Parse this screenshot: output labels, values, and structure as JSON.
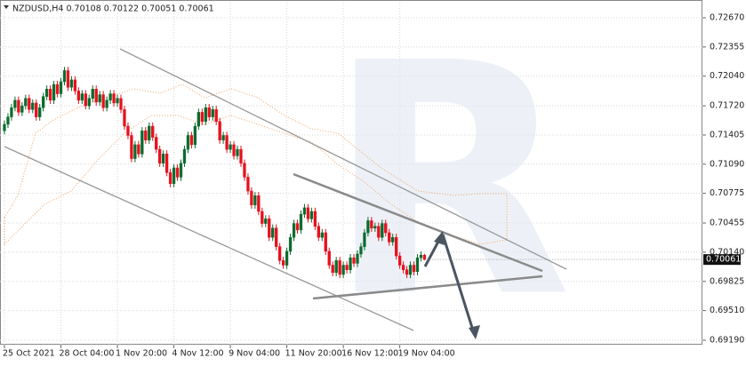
{
  "chart_data": {
    "type": "candlestick",
    "title": "NZDUSD,H4  0.70108 0.70122 0.70051 0.70061",
    "categories": [
      "25 Oct 2021",
      null,
      null,
      null,
      null,
      null,
      null,
      null,
      null,
      null,
      null,
      null,
      null,
      null,
      null,
      null,
      "28 Oct 04:00",
      null,
      null,
      null,
      null,
      null,
      null,
      null,
      null,
      null,
      null,
      null,
      null,
      null,
      null,
      null,
      "1 Nov 20:00",
      null,
      null,
      null,
      null,
      null,
      null,
      null,
      null,
      null,
      null,
      null,
      null,
      null,
      null,
      null,
      "4 Nov 12:00",
      null,
      null,
      null,
      null,
      null,
      null,
      null,
      null,
      null,
      null,
      null,
      null,
      null,
      null,
      null,
      "9 Nov 04:00",
      null,
      null,
      null,
      null,
      null,
      null,
      null,
      null,
      null,
      null,
      null,
      null,
      null,
      null,
      null,
      "11 Nov 20:00",
      null,
      null,
      null,
      null,
      null,
      null,
      null,
      null,
      null,
      null,
      null,
      null,
      null,
      null,
      null,
      "16 Nov 12:00",
      null,
      null,
      null,
      null,
      null,
      null,
      null,
      null,
      null,
      null,
      null,
      null,
      null,
      null,
      null,
      "19 Nov 04:00",
      null,
      null,
      null,
      null,
      null,
      null,
      null
    ],
    "open": [
      0.7145,
      0.7152,
      0.716,
      0.717,
      0.7178,
      0.7165,
      0.7172,
      0.718,
      0.7168,
      0.7175,
      0.716,
      0.717,
      0.7182,
      0.719,
      0.7178,
      0.7195,
      0.7185,
      0.7198,
      0.721,
      0.7192,
      0.72,
      0.7188,
      0.7178,
      0.7185,
      0.7172,
      0.718,
      0.719,
      0.7176,
      0.7184,
      0.717,
      0.7178,
      0.7185,
      0.7175,
      0.718,
      0.7168,
      0.715,
      0.714,
      0.7115,
      0.713,
      0.712,
      0.7145,
      0.7135,
      0.715,
      0.7138,
      0.7125,
      0.711,
      0.712,
      0.71,
      0.7088,
      0.7105,
      0.7095,
      0.711,
      0.7125,
      0.714,
      0.713,
      0.715,
      0.7165,
      0.7155,
      0.717,
      0.716,
      0.7168,
      0.7155,
      0.7135,
      0.714,
      0.7125,
      0.713,
      0.7118,
      0.7125,
      0.711,
      0.7095,
      0.708,
      0.7065,
      0.7075,
      0.7058,
      0.7045,
      0.705,
      0.703,
      0.704,
      0.702,
      0.7005,
      0.7,
      0.7015,
      0.703,
      0.7045,
      0.7038,
      0.7055,
      0.7062,
      0.705,
      0.7058,
      0.7042,
      0.703,
      0.7035,
      0.7015,
      0.7,
      0.6992,
      0.7005,
      0.699,
      0.7,
      0.6995,
      0.7008,
      0.7002,
      0.7012,
      0.702,
      0.7035,
      0.7048,
      0.704,
      0.7042,
      0.703,
      0.7045,
      0.7035,
      0.7025,
      0.703,
      0.701,
      0.7,
      0.6995,
      0.699,
      0.7,
      0.6993,
      0.7008,
      0.70108
    ],
    "high": [
      0.7156,
      0.7164,
      0.7174,
      0.7182,
      0.7182,
      0.7176,
      0.7184,
      0.7184,
      0.7179,
      0.7179,
      0.7174,
      0.7186,
      0.7194,
      0.7194,
      0.7199,
      0.7199,
      0.7202,
      0.7214,
      0.7214,
      0.7204,
      0.7204,
      0.7192,
      0.7189,
      0.7189,
      0.7184,
      0.7194,
      0.7194,
      0.7188,
      0.7188,
      0.7182,
      0.7189,
      0.7189,
      0.7184,
      0.7184,
      0.7172,
      0.7154,
      0.7144,
      0.7134,
      0.7134,
      0.7149,
      0.7149,
      0.7154,
      0.7154,
      0.7142,
      0.7129,
      0.7124,
      0.7124,
      0.7104,
      0.7109,
      0.7109,
      0.7114,
      0.7129,
      0.7144,
      0.7144,
      0.7154,
      0.7169,
      0.7169,
      0.7174,
      0.7174,
      0.7172,
      0.7172,
      0.7159,
      0.7144,
      0.7144,
      0.7134,
      0.7134,
      0.7129,
      0.7129,
      0.7114,
      0.7099,
      0.7084,
      0.7079,
      0.7079,
      0.7062,
      0.7054,
      0.7054,
      0.7044,
      0.7044,
      0.7024,
      0.7009,
      0.7019,
      0.7034,
      0.7049,
      0.7049,
      0.7059,
      0.7066,
      0.7066,
      0.7062,
      0.7062,
      0.7046,
      0.7039,
      0.7039,
      0.7019,
      0.7004,
      0.7009,
      0.7009,
      0.7004,
      0.7004,
      0.7012,
      0.7012,
      0.7016,
      0.7024,
      0.7039,
      0.7052,
      0.7052,
      0.7046,
      0.7046,
      0.7049,
      0.7049,
      0.7039,
      0.7034,
      0.7034,
      0.7014,
      0.7004,
      0.6999,
      0.7004,
      0.7004,
      0.7012,
      0.7015,
      0.70122
    ],
    "low": [
      0.7141,
      0.7148,
      0.7156,
      0.7166,
      0.7161,
      0.7161,
      0.7168,
      0.7164,
      0.7164,
      0.7156,
      0.7156,
      0.7166,
      0.7178,
      0.7174,
      0.7174,
      0.7181,
      0.7181,
      0.7194,
      0.7188,
      0.7188,
      0.7184,
      0.7174,
      0.7174,
      0.7168,
      0.7168,
      0.7176,
      0.7172,
      0.7172,
      0.7166,
      0.7166,
      0.7174,
      0.7171,
      0.7171,
      0.7164,
      0.7146,
      0.7136,
      0.7111,
      0.7111,
      0.7116,
      0.7116,
      0.7131,
      0.7131,
      0.7134,
      0.7121,
      0.7106,
      0.7106,
      0.7096,
      0.7084,
      0.7084,
      0.7091,
      0.7091,
      0.7106,
      0.7121,
      0.7126,
      0.7126,
      0.7146,
      0.7151,
      0.7151,
      0.7156,
      0.7156,
      0.7151,
      0.7131,
      0.7131,
      0.7121,
      0.7121,
      0.7114,
      0.7114,
      0.7106,
      0.7091,
      0.7076,
      0.7061,
      0.7061,
      0.7054,
      0.7041,
      0.7041,
      0.7026,
      0.7026,
      0.7016,
      0.7001,
      0.6996,
      0.6996,
      0.7011,
      0.7026,
      0.7034,
      0.7034,
      0.7051,
      0.7046,
      0.7046,
      0.7038,
      0.7026,
      0.7026,
      0.7011,
      0.6996,
      0.6988,
      0.6988,
      0.6986,
      0.6986,
      0.6991,
      0.6991,
      0.6998,
      0.6998,
      0.7008,
      0.7016,
      0.7031,
      0.7036,
      0.7036,
      0.7026,
      0.7026,
      0.7031,
      0.7021,
      0.7021,
      0.7006,
      0.6996,
      0.6991,
      0.6986,
      0.6986,
      0.6989,
      0.6989,
      0.7004,
      0.70051
    ],
    "close": [
      0.7152,
      0.716,
      0.717,
      0.7178,
      0.7165,
      0.7172,
      0.718,
      0.7168,
      0.7175,
      0.716,
      0.717,
      0.7182,
      0.719,
      0.7178,
      0.7195,
      0.7185,
      0.7198,
      0.721,
      0.7192,
      0.72,
      0.7188,
      0.7178,
      0.7185,
      0.7172,
      0.718,
      0.719,
      0.7176,
      0.7184,
      0.717,
      0.7178,
      0.7185,
      0.7175,
      0.718,
      0.7168,
      0.715,
      0.714,
      0.7115,
      0.713,
      0.712,
      0.7145,
      0.7135,
      0.715,
      0.7138,
      0.7125,
      0.711,
      0.712,
      0.71,
      0.7088,
      0.7105,
      0.7095,
      0.711,
      0.7125,
      0.714,
      0.713,
      0.715,
      0.7165,
      0.7155,
      0.717,
      0.716,
      0.7168,
      0.7155,
      0.7135,
      0.714,
      0.7125,
      0.713,
      0.7118,
      0.7125,
      0.711,
      0.7095,
      0.708,
      0.7065,
      0.7075,
      0.7058,
      0.7045,
      0.705,
      0.703,
      0.704,
      0.702,
      0.7005,
      0.7,
      0.7015,
      0.703,
      0.7045,
      0.7038,
      0.7055,
      0.7062,
      0.705,
      0.7058,
      0.7042,
      0.703,
      0.7035,
      0.7015,
      0.7,
      0.6992,
      0.7005,
      0.699,
      0.7,
      0.6995,
      0.7008,
      0.7002,
      0.7012,
      0.702,
      0.7035,
      0.7048,
      0.704,
      0.7042,
      0.703,
      0.7045,
      0.7035,
      0.7025,
      0.703,
      0.701,
      0.7,
      0.6995,
      0.699,
      0.7,
      0.6993,
      0.7008,
      0.70108,
      0.70061
    ],
    "up_color": "#0b6b2e",
    "down_color": "#e8101c",
    "ylim": [
      0.69142,
      0.72833
    ],
    "yticks": [
      {
        "value": 0.7267,
        "label": "0.72670"
      },
      0.72355,
      {
        "value": 0.7204,
        "label": "0.72040"
      },
      {
        "value": 0.7172,
        "label": "0.71720"
      },
      0.71405,
      {
        "value": 0.7109,
        "label": "0.71090"
      },
      0.70775,
      0.70455,
      {
        "value": 0.7014,
        "label": "0.70140"
      },
      0.69825,
      {
        "value": 0.6951,
        "label": "0.69510"
      },
      {
        "value": 0.6919,
        "label": "0.69190"
      }
    ],
    "grid": true
  }
}
